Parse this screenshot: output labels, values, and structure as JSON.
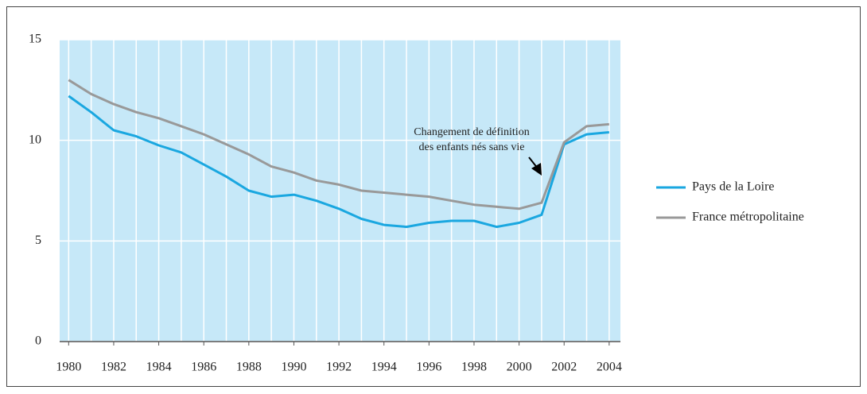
{
  "chart_data": {
    "type": "line",
    "x": [
      1980,
      1981,
      1982,
      1983,
      1984,
      1985,
      1986,
      1987,
      1988,
      1989,
      1990,
      1991,
      1992,
      1993,
      1994,
      1995,
      1996,
      1997,
      1998,
      1999,
      2000,
      2001,
      2002,
      2003,
      2004
    ],
    "series": [
      {
        "name": "Pays de la Loire",
        "color": "#1aa7e0",
        "values": [
          12.2,
          11.4,
          10.5,
          10.2,
          9.75,
          9.4,
          8.8,
          8.2,
          7.5,
          7.2,
          7.3,
          7.0,
          6.6,
          6.1,
          5.8,
          5.7,
          5.9,
          6.0,
          6.0,
          5.7,
          5.9,
          6.3,
          9.8,
          10.3,
          10.4
        ]
      },
      {
        "name": "France métropolitaine",
        "color": "#999999",
        "values": [
          13.0,
          12.3,
          11.8,
          11.4,
          11.1,
          10.7,
          10.3,
          9.8,
          9.3,
          8.7,
          8.4,
          8.0,
          7.8,
          7.5,
          7.4,
          7.3,
          7.2,
          7.0,
          6.8,
          6.7,
          6.6,
          6.9,
          9.9,
          10.7,
          10.8
        ]
      }
    ],
    "xlim": [
      1979.6,
      2004.5
    ],
    "xticks": [
      1980,
      1982,
      1984,
      1986,
      1988,
      1990,
      1992,
      1994,
      1996,
      1998,
      2000,
      2002,
      2004
    ],
    "ylim": [
      0,
      15
    ],
    "yticks": [
      0,
      5,
      10,
      15
    ],
    "grid": true,
    "plot_background": "#c6e8f8",
    "annotation": [
      "Changement de définition",
      "des enfants nés sans vie"
    ],
    "legend": "right"
  }
}
